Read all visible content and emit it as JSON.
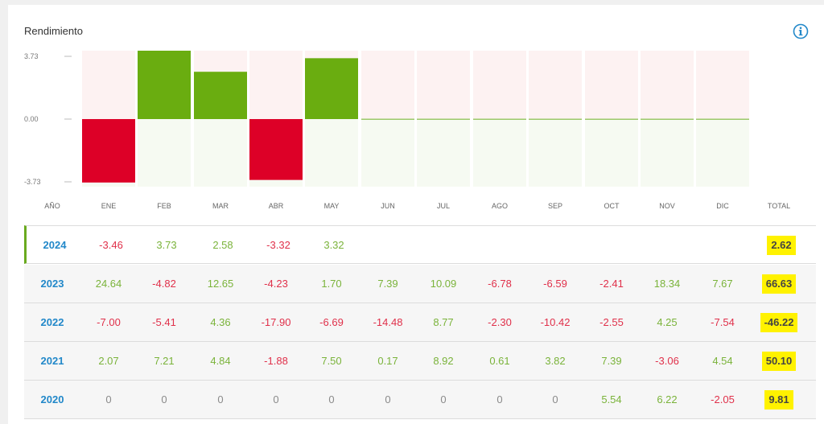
{
  "panel": {
    "title": "Rendimiento"
  },
  "colors": {
    "positive": "#6aad10",
    "negative": "#dd0027",
    "positive_zone": "#f6faf2",
    "negative_zone": "#fdf2f2",
    "year_text": "#2288c9",
    "highlight": "#fff200"
  },
  "chart_data": {
    "type": "bar",
    "categories": [
      "ENE",
      "FEB",
      "MAR",
      "ABR",
      "MAY",
      "JUN",
      "JUL",
      "AGO",
      "SEP",
      "OCT",
      "NOV",
      "DIC"
    ],
    "values": [
      -3.46,
      3.73,
      2.58,
      -3.32,
      3.32,
      0,
      0,
      0,
      0,
      0,
      0,
      0
    ],
    "ylim": [
      -3.73,
      3.73
    ],
    "yticks": [
      "3.73",
      "0.00",
      "-3.73"
    ],
    "grid": false,
    "legend": "none"
  },
  "table": {
    "headers": [
      "AÑO",
      "ENE",
      "FEB",
      "MAR",
      "ABR",
      "MAY",
      "JUN",
      "JUL",
      "AGO",
      "SEP",
      "OCT",
      "NOV",
      "DIC",
      "TOTAL"
    ],
    "rows": [
      {
        "year": "2024",
        "values": [
          "-3.46",
          "3.73",
          "2.58",
          "-3.32",
          "3.32",
          "",
          "",
          "",
          "",
          "",
          "",
          ""
        ],
        "total": "2.62"
      },
      {
        "year": "2023",
        "values": [
          "24.64",
          "-4.82",
          "12.65",
          "-4.23",
          "1.70",
          "7.39",
          "10.09",
          "-6.78",
          "-6.59",
          "-2.41",
          "18.34",
          "7.67"
        ],
        "total": "66.63"
      },
      {
        "year": "2022",
        "values": [
          "-7.00",
          "-5.41",
          "4.36",
          "-17.90",
          "-6.69",
          "-14.48",
          "8.77",
          "-2.30",
          "-10.42",
          "-2.55",
          "4.25",
          "-7.54"
        ],
        "total": "-46.22"
      },
      {
        "year": "2021",
        "values": [
          "2.07",
          "7.21",
          "4.84",
          "-1.88",
          "7.50",
          "0.17",
          "8.92",
          "0.61",
          "3.82",
          "7.39",
          "-3.06",
          "4.54"
        ],
        "total": "50.10"
      },
      {
        "year": "2020",
        "values": [
          "0",
          "0",
          "0",
          "0",
          "0",
          "0",
          "0",
          "0",
          "0",
          "5.54",
          "6.22",
          "-2.05"
        ],
        "total": "9.81"
      }
    ]
  },
  "icons": {
    "info": "info-icon"
  }
}
